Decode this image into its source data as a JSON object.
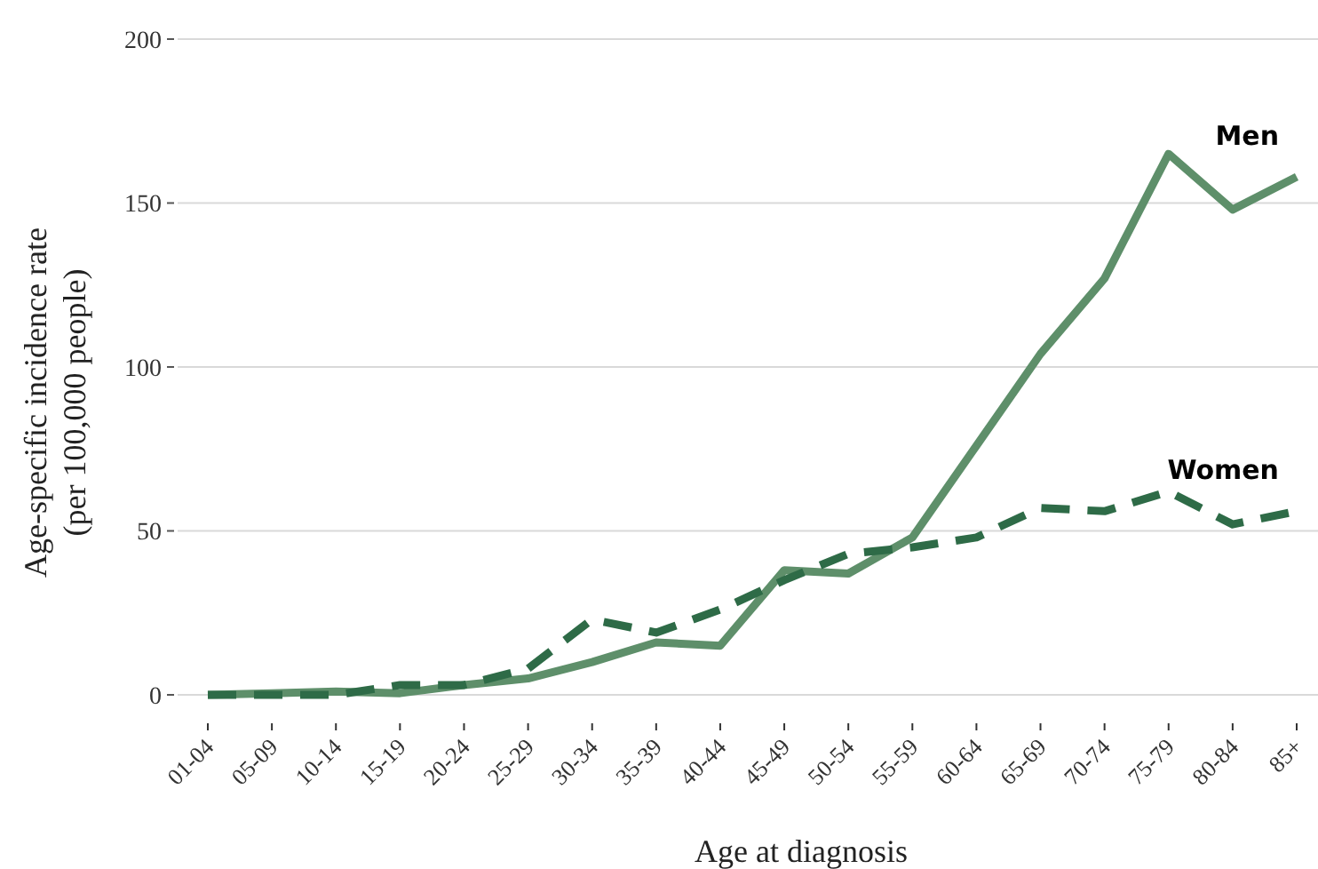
{
  "chart_data": {
    "type": "line",
    "xlabel": "Age at diagnosis",
    "ylabel": "Age-specific incidence rate\n(per 100,000 people)",
    "categories": [
      "01-04",
      "05-09",
      "10-14",
      "15-19",
      "20-24",
      "25-29",
      "30-34",
      "35-39",
      "40-44",
      "45-49",
      "50-54",
      "55-59",
      "60-64",
      "65-69",
      "70-74",
      "75-79",
      "80-84",
      "85+"
    ],
    "ylim": [
      0,
      200
    ],
    "yticks": [
      0,
      50,
      100,
      150,
      200
    ],
    "grid": "y",
    "series": [
      {
        "name": "Men",
        "color": "#5e8f6a",
        "line_style": "solid",
        "values": [
          0,
          0.5,
          1,
          0.5,
          3,
          5,
          10,
          16,
          15,
          38,
          37,
          48,
          76,
          104,
          127,
          165,
          148,
          158
        ]
      },
      {
        "name": "Women",
        "color": "#2e6b47",
        "line_style": "dashed",
        "values": [
          0,
          0,
          0,
          3,
          3,
          8,
          23,
          19,
          26,
          35,
          43,
          45,
          48,
          57,
          56,
          62,
          52,
          56
        ]
      }
    ]
  }
}
